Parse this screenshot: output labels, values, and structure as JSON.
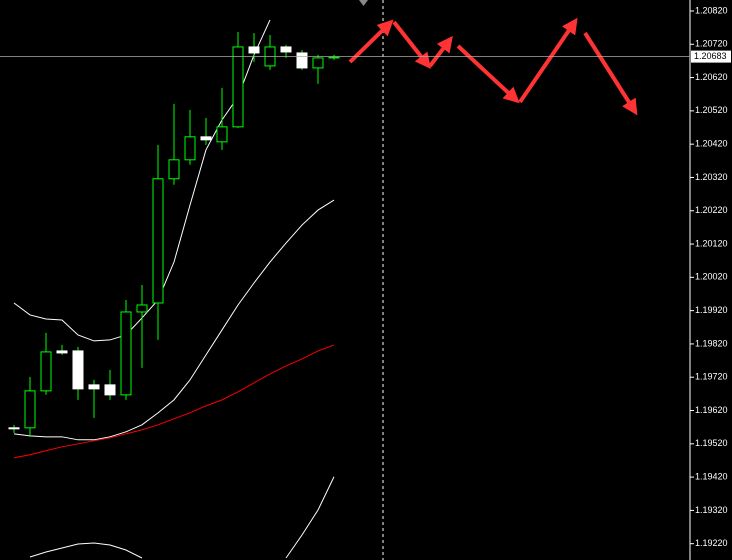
{
  "chart_data": {
    "type": "candlestick",
    "categories": [
      null,
      null,
      null,
      null,
      null,
      null,
      null,
      null,
      null,
      null,
      null,
      null,
      null,
      null,
      null,
      null,
      null,
      null,
      null,
      null,
      null
    ],
    "open": [
      1.19568,
      1.19568,
      1.19679,
      1.19799,
      1.19799,
      1.19697,
      1.19697,
      1.19667,
      1.19916,
      1.19943,
      1.20316,
      1.20373,
      1.20442,
      1.20427,
      1.20472,
      1.20712,
      1.20655,
      1.20712,
      1.20694,
      1.20649,
      1.20679
    ],
    "high": [
      1.19577,
      1.19721,
      1.19853,
      1.19817,
      1.19811,
      1.19712,
      1.19742,
      1.19952,
      1.19997,
      1.20418,
      1.20541,
      1.20523,
      1.20499,
      1.20589,
      1.20757,
      1.20754,
      1.20748,
      1.20718,
      1.20703,
      1.20688,
      1.20688
    ],
    "low": [
      1.19553,
      1.19541,
      1.19667,
      1.19787,
      1.19652,
      1.19598,
      1.19652,
      1.19652,
      1.19748,
      1.19832,
      1.20298,
      1.20358,
      1.20418,
      1.20403,
      1.20469,
      1.20667,
      1.20643,
      1.20679,
      1.20643,
      1.20601,
      1.20673
    ],
    "close": [
      1.19565,
      1.19679,
      1.19796,
      1.19793,
      1.19685,
      1.19685,
      1.19667,
      1.19916,
      1.19937,
      1.20316,
      1.20373,
      1.20442,
      1.20433,
      1.20472,
      1.20712,
      1.20694,
      1.20712,
      1.20697,
      1.20649,
      1.20679,
      1.20682
    ],
    "up_color": "#00ff00",
    "down_color": "#ffffff",
    "lines": [
      {
        "color": "#ffffff",
        "values": [
          1.19943,
          1.19907,
          1.19895,
          1.19892,
          1.19847,
          1.19829,
          1.19832,
          1.19847,
          1.19898,
          1.19952,
          1.20066,
          1.20237,
          1.20403,
          1.20493,
          1.20562,
          1.20688,
          1.20793,
          null,
          null,
          null,
          null
        ]
      },
      {
        "color": "#ffffff",
        "values": [
          1.1955,
          1.19544,
          1.19541,
          1.19541,
          1.19532,
          1.19532,
          1.19541,
          1.19556,
          1.19577,
          1.19613,
          1.19652,
          1.19712,
          1.19787,
          1.19862,
          1.19937,
          1.20003,
          1.20066,
          1.20123,
          1.20177,
          1.20222,
          1.20252
        ]
      },
      {
        "color": "#ffffff",
        "values": [
          null,
          1.1918,
          1.19195,
          1.19207,
          1.19219,
          1.19222,
          1.19216,
          1.19201,
          1.19177,
          null,
          null,
          null,
          null,
          null,
          null,
          null,
          null,
          1.19177,
          1.19246,
          1.19321,
          1.19421
        ]
      },
      {
        "color": "#ff0000",
        "values": [
          1.19478,
          1.19487,
          1.19499,
          1.19511,
          1.1952,
          1.19529,
          1.19538,
          1.1955,
          1.19562,
          1.19577,
          1.19595,
          1.19613,
          1.19634,
          1.19652,
          1.19676,
          1.19703,
          1.1973,
          1.19754,
          1.19775,
          1.19799,
          1.19817
        ]
      }
    ],
    "ylim": [
      1.19171,
      1.20853
    ],
    "yticks": [
      {
        "value": 1.2082,
        "label": "1.20820"
      },
      {
        "value": 1.2072,
        "label": "1.20720"
      },
      {
        "value": 1.2062,
        "label": "1.20620"
      },
      {
        "value": 1.2052,
        "label": "1.20520"
      },
      {
        "value": 1.2042,
        "label": "1.20420"
      },
      {
        "value": 1.2032,
        "label": "1.20320"
      },
      {
        "value": 1.2022,
        "label": "1.20220"
      },
      {
        "value": 1.2012,
        "label": "1.20120"
      },
      {
        "value": 1.2002,
        "label": "1.20020"
      },
      {
        "value": 1.1992,
        "label": "1.19920"
      },
      {
        "value": 1.1982,
        "label": "1.19820"
      },
      {
        "value": 1.1972,
        "label": "1.19720"
      },
      {
        "value": 1.1962,
        "label": "1.19620"
      },
      {
        "value": 1.1952,
        "label": "1.19520"
      },
      {
        "value": 1.1942,
        "label": "1.19420"
      },
      {
        "value": 1.1932,
        "label": "1.19320"
      },
      {
        "value": 1.1922,
        "label": "1.19220"
      }
    ],
    "current_price": {
      "value": 1.20683,
      "label": "1.20683"
    }
  }
}
